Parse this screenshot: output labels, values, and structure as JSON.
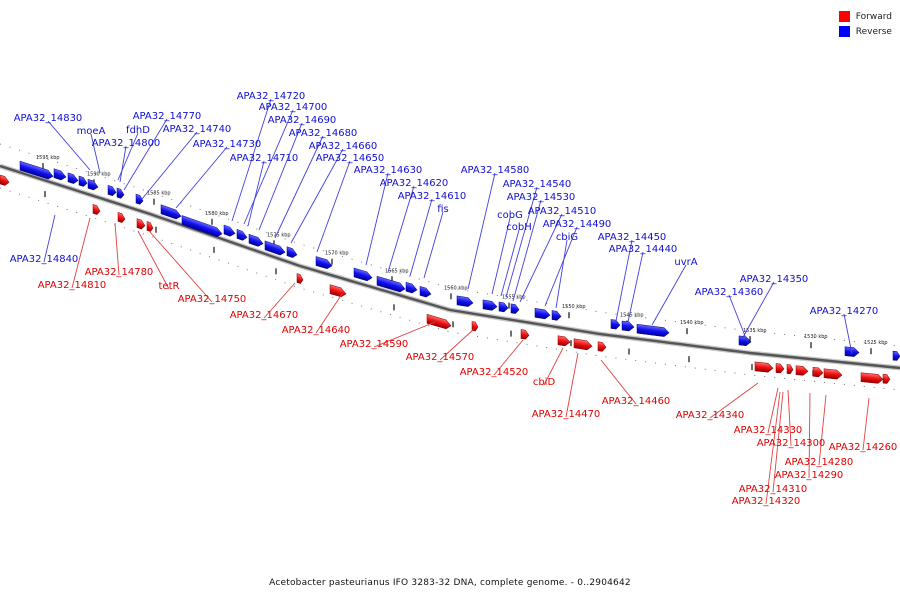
{
  "legend": {
    "forward": {
      "label": "Forward",
      "color": "#ff0000"
    },
    "reverse": {
      "label": "Reverse",
      "color": "#0000ff"
    }
  },
  "caption": "Acetobacter pasteurianus IFO 3283-32 DNA, complete genome. - 0..2904642",
  "ticks": [
    "1595 kbp",
    "1590 kbp",
    "1585 kbp",
    "1580 kbp",
    "1575 kbp",
    "1570 kbp",
    "1565 kbp",
    "1560 kbp",
    "1555 kbp",
    "1550 kbp",
    "1545 kbp",
    "1540 kbp",
    "1535 kbp",
    "1530 kbp",
    "1525 kbp"
  ],
  "genes": {
    "reverse": [
      "APA32_14830",
      "moeA",
      "fdhD",
      "APA32_14800",
      "APA32_14770",
      "APA32_14740",
      "APA32_14730",
      "APA32_14720",
      "APA32_14700",
      "APA32_14690",
      "APA32_14680",
      "APA32_14710",
      "APA32_14660",
      "APA32_14650",
      "APA32_14630",
      "APA32_14620",
      "APA32_14610",
      "fis",
      "APA32_14580",
      "APA32_14540",
      "APA32_14530",
      "cobG",
      "APA32_14510",
      "cobH",
      "APA32_14490",
      "cbiG",
      "APA32_14450",
      "APA32_14440",
      "uvrA",
      "APA32_14350",
      "APA32_14360",
      "APA32_14270",
      "APA32_14840"
    ],
    "forward": [
      "APA32_14810",
      "APA32_14780",
      "tetR",
      "APA32_14750",
      "APA32_14670",
      "APA32_14640",
      "APA32_14590",
      "APA32_14570",
      "APA32_14520",
      "cbiD",
      "APA32_14470",
      "APA32_14460",
      "APA32_14340",
      "APA32_14330",
      "APA32_14300",
      "APA32_14280",
      "APA32_14290",
      "APA32_14310",
      "APA32_14320",
      "APA32_14260"
    ]
  }
}
